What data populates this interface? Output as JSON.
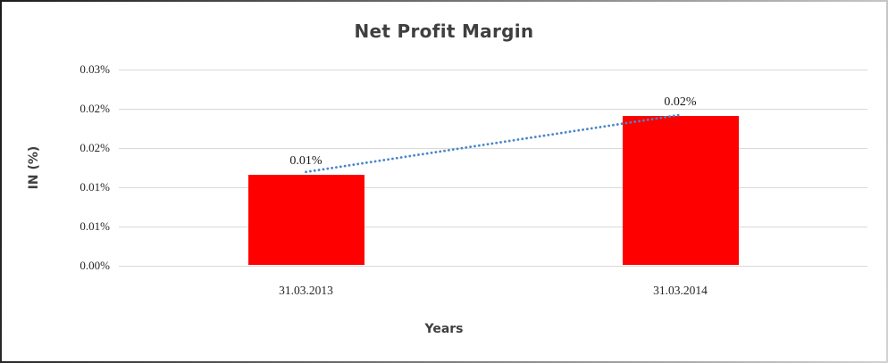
{
  "chart_data": {
    "type": "bar",
    "title": "Net Profit Margin",
    "xlabel": "Years",
    "ylabel": "IN (%)",
    "categories": [
      "31.03.2013",
      "31.03.2014"
    ],
    "values": [
      0.0115,
      0.019
    ],
    "data_labels": [
      "0.01%",
      "0.02%"
    ],
    "ylim": [
      0,
      0.025
    ],
    "ytick_step": 0.005,
    "ytick_labels": [
      "0.00%",
      "0.01%",
      "0.01%",
      "0.02%",
      "0.02%",
      "0.03%"
    ],
    "grid": true,
    "legend": null,
    "bar_color": "#ff0000",
    "gridline_color": "#d9d9d9",
    "trendline": {
      "type": "linear",
      "style": "dotted",
      "color": "#4a86c8"
    }
  }
}
